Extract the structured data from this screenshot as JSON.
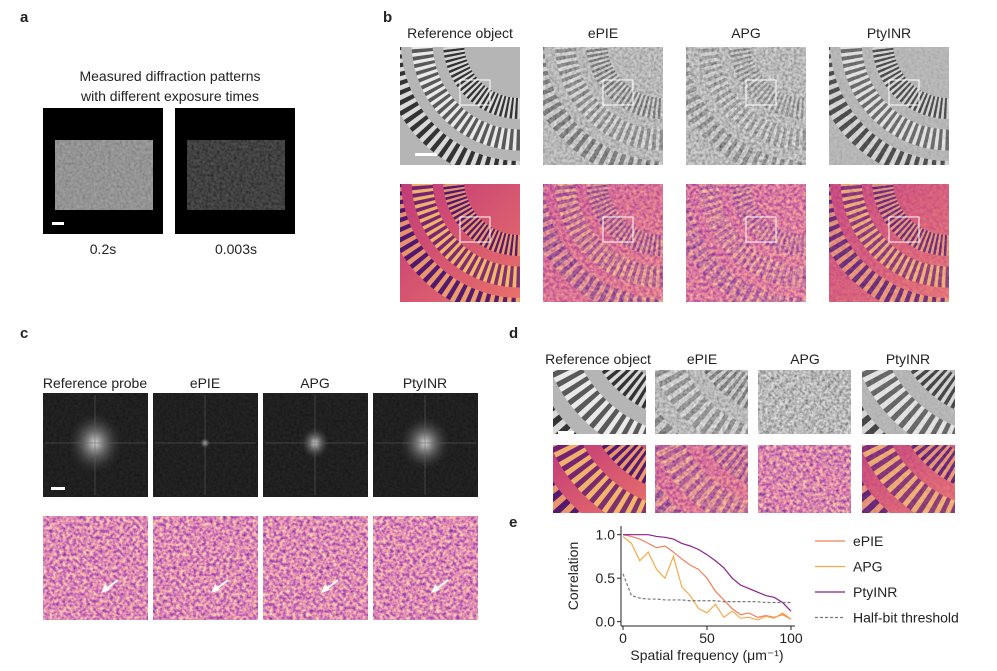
{
  "panels": {
    "a": {
      "label": "a",
      "caption": [
        "Measured diffraction patterns",
        "with different exposure times"
      ],
      "image_labels": [
        "0.2s",
        "0.003s"
      ]
    },
    "b": {
      "label": "b",
      "headers": [
        "Reference object",
        "ePIE",
        "APG",
        "PtyINR"
      ]
    },
    "c": {
      "label": "c",
      "headers": [
        "Reference probe",
        "ePIE",
        "APG",
        "PtyINR"
      ]
    },
    "d": {
      "label": "d",
      "headers": [
        "Reference object",
        "ePIE",
        "APG",
        "PtyINR"
      ]
    },
    "e": {
      "label": "e"
    }
  },
  "chart_data": {
    "type": "line",
    "xlabel": "Spatial frequency (μm⁻¹)",
    "ylabel": "Correlation",
    "x": [
      0,
      5,
      10,
      15,
      20,
      25,
      30,
      35,
      40,
      45,
      50,
      55,
      60,
      65,
      70,
      75,
      80,
      85,
      90,
      95,
      100
    ],
    "xlim": [
      0,
      100
    ],
    "xticks": [
      0,
      50,
      100
    ],
    "ylim": [
      -0.05,
      1.1
    ],
    "yticks": [
      {
        "value": 0,
        "label": "0.0"
      },
      {
        "value": 0.5,
        "label": "0.5"
      },
      {
        "value": 1,
        "label": "1.0"
      }
    ],
    "series": [
      {
        "name": "ePIE",
        "color": "#f37f5b",
        "line_style": "solid",
        "values": [
          1.0,
          0.98,
          0.95,
          0.9,
          0.85,
          0.87,
          0.8,
          0.72,
          0.65,
          0.6,
          0.5,
          0.35,
          0.25,
          0.15,
          0.08,
          0.1,
          0.05,
          0.07,
          0.05,
          0.08,
          0.03
        ]
      },
      {
        "name": "APG",
        "color": "#f9a94b",
        "line_style": "solid",
        "values": [
          0.98,
          0.9,
          0.7,
          0.8,
          0.6,
          0.5,
          0.75,
          0.4,
          0.3,
          0.15,
          0.1,
          0.2,
          0.05,
          0.12,
          0.04,
          0.05,
          0.02,
          0.06,
          0.04,
          0.1,
          0.03
        ]
      },
      {
        "name": "PtyINR",
        "color": "#8e1f8f",
        "line_style": "solid",
        "values": [
          1.0,
          1.0,
          1.0,
          1.0,
          0.98,
          0.97,
          0.95,
          0.9,
          0.87,
          0.83,
          0.77,
          0.7,
          0.62,
          0.5,
          0.42,
          0.38,
          0.34,
          0.3,
          0.28,
          0.22,
          0.12
        ]
      },
      {
        "name": "Half-bit threshold",
        "color": "#777777",
        "line_style": "dashed",
        "values": [
          0.55,
          0.3,
          0.27,
          0.26,
          0.26,
          0.25,
          0.25,
          0.25,
          0.24,
          0.24,
          0.24,
          0.24,
          0.23,
          0.23,
          0.23,
          0.23,
          0.23,
          0.22,
          0.22,
          0.22,
          0.22
        ]
      }
    ]
  }
}
